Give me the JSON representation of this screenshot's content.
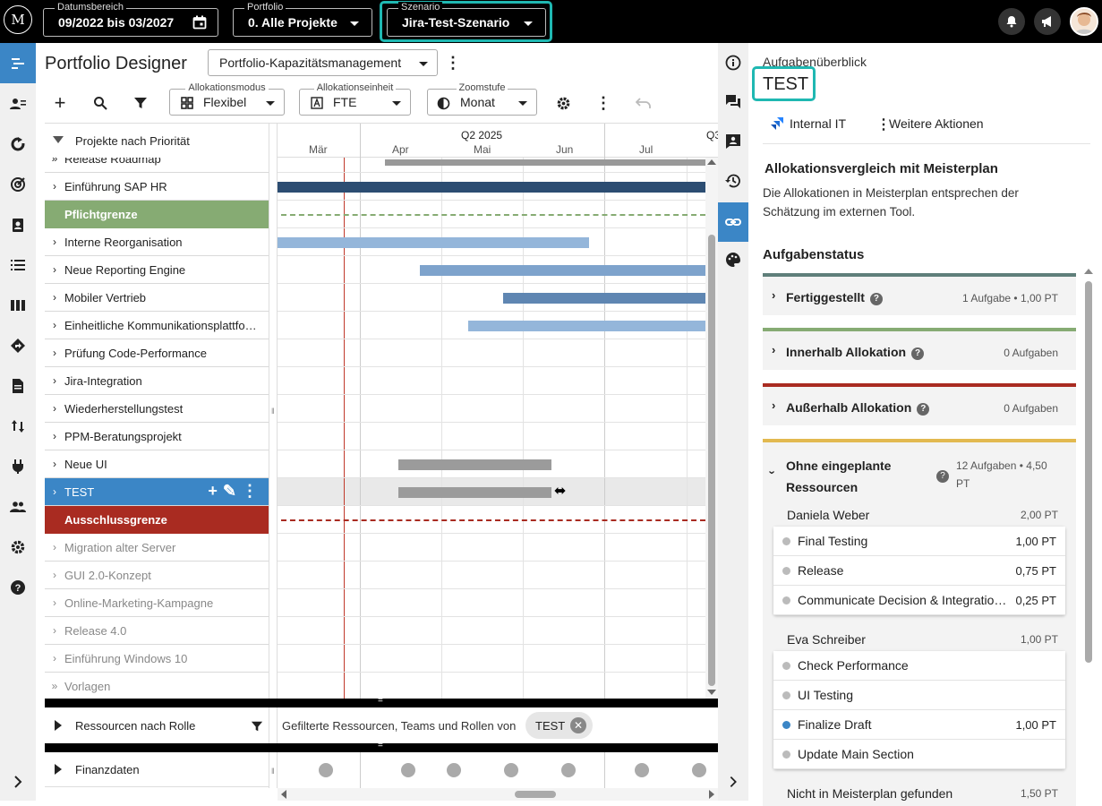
{
  "top": {
    "logo": "M",
    "date_label": "Datumsbereich",
    "date_value": "09/2022 bis 03/2027",
    "portfolio_label": "Portfolio",
    "portfolio_value": "0. Alle Projekte",
    "szenario_label": "Szenario",
    "szenario_value": "Jira-Test-Szenario"
  },
  "header": {
    "title": "Portfolio Designer",
    "view_value": "Portfolio-Kapazitätsmanagement",
    "alloc_mode_label": "Allokationsmodus",
    "alloc_mode_value": "Flexibel",
    "alloc_unit_label": "Allokationseinheit",
    "alloc_unit_value": "FTE",
    "zoom_label": "Zoomstufe",
    "zoom_value": "Monat"
  },
  "timeline": {
    "quarter": "Q2 2025",
    "quarter_next": "Q3",
    "months": [
      "Mär",
      "Apr",
      "Mai",
      "Jun",
      "Jul"
    ]
  },
  "list_header": "Projekte nach Priorität",
  "rows": [
    {
      "label": "Release Roadmap",
      "kind": "cut",
      "chev": "»"
    },
    {
      "label": "Einführung SAP HR",
      "kind": "normal",
      "chev": "›"
    },
    {
      "label": "Pflichtgrenze",
      "kind": "pflicht",
      "chev": ""
    },
    {
      "label": "Interne Reorganisation",
      "kind": "normal",
      "chev": "›"
    },
    {
      "label": "Neue Reporting Engine",
      "kind": "normal",
      "chev": "›"
    },
    {
      "label": "Mobiler Vertrieb",
      "kind": "normal",
      "chev": "›"
    },
    {
      "label": "Einheitliche Kommunikationsplattfo…",
      "kind": "normal",
      "chev": "›"
    },
    {
      "label": "Prüfung Code-Performance",
      "kind": "normal",
      "chev": "›"
    },
    {
      "label": "Jira-Integration",
      "kind": "normal",
      "chev": "›"
    },
    {
      "label": "Wiederherstellungstest",
      "kind": "normal",
      "chev": "›"
    },
    {
      "label": "PPM-Beratungsprojekt",
      "kind": "normal",
      "chev": "›"
    },
    {
      "label": "Neue UI",
      "kind": "normal",
      "chev": "›"
    },
    {
      "label": "TEST",
      "kind": "selected",
      "chev": "›"
    },
    {
      "label": "Ausschlussgrenze",
      "kind": "aus",
      "chev": ""
    },
    {
      "label": "Migration alter Server",
      "kind": "gray",
      "chev": "›"
    },
    {
      "label": "GUI 2.0-Konzept",
      "kind": "gray",
      "chev": "›"
    },
    {
      "label": "Online-Marketing-Kampagne",
      "kind": "gray",
      "chev": "›"
    },
    {
      "label": "Release 4.0",
      "kind": "gray",
      "chev": "›"
    },
    {
      "label": "Einführung Windows 10",
      "kind": "gray",
      "chev": "›"
    },
    {
      "label": "Vorlagen",
      "kind": "gray",
      "chev": "»"
    }
  ],
  "bottom": {
    "resources_label": "Ressourcen nach Rolle",
    "filter_text": "Gefilterte Ressourcen, Teams und Rollen von",
    "chip": "TEST",
    "finance_label": "Finanzdaten"
  },
  "panel": {
    "heading": "Aufgabenüberblick",
    "title": "TEST",
    "internal": "Internal IT",
    "more": "Weitere Aktionen",
    "compare_title": "Allokationsvergleich mit Meisterplan",
    "compare_text": "Die Allokationen in Meisterplan entsprechen der Schätzung im externen Tool.",
    "status_title": "Aufgabenstatus",
    "statuses": [
      {
        "name": "Fertiggestellt",
        "count": "1 Aufgabe • 1,00 PT",
        "color": "#5f7f7a"
      },
      {
        "name": "Innerhalb Allokation",
        "count": "0 Aufgaben",
        "color": "#86ab73"
      },
      {
        "name": "Außerhalb Allokation",
        "count": "0 Aufgaben",
        "color": "#a92b21"
      },
      {
        "name": "Ohne eingeplante Ressourcen",
        "count": "12 Aufgaben • 4,50 PT",
        "color": "#e2b950"
      }
    ],
    "person1": {
      "name": "Daniela Weber",
      "value": "2,00 PT"
    },
    "tasks1": [
      {
        "name": "Final Testing",
        "value": "1,00 PT"
      },
      {
        "name": "Release",
        "value": "0,75 PT"
      },
      {
        "name": "Communicate Decision & Integratio…",
        "value": "0,25 PT"
      }
    ],
    "person2": {
      "name": "Eva Schreiber",
      "value": "1,00 PT"
    },
    "tasks2": [
      {
        "name": "Check Performance",
        "value": ""
      },
      {
        "name": "UI Testing",
        "value": ""
      },
      {
        "name": "Finalize Draft",
        "value": "1,00 PT"
      },
      {
        "name": "Update Main Section",
        "value": ""
      }
    ],
    "not_found": {
      "name": "Nicht in Meisterplan gefunden",
      "value": "1,50 PT"
    }
  }
}
